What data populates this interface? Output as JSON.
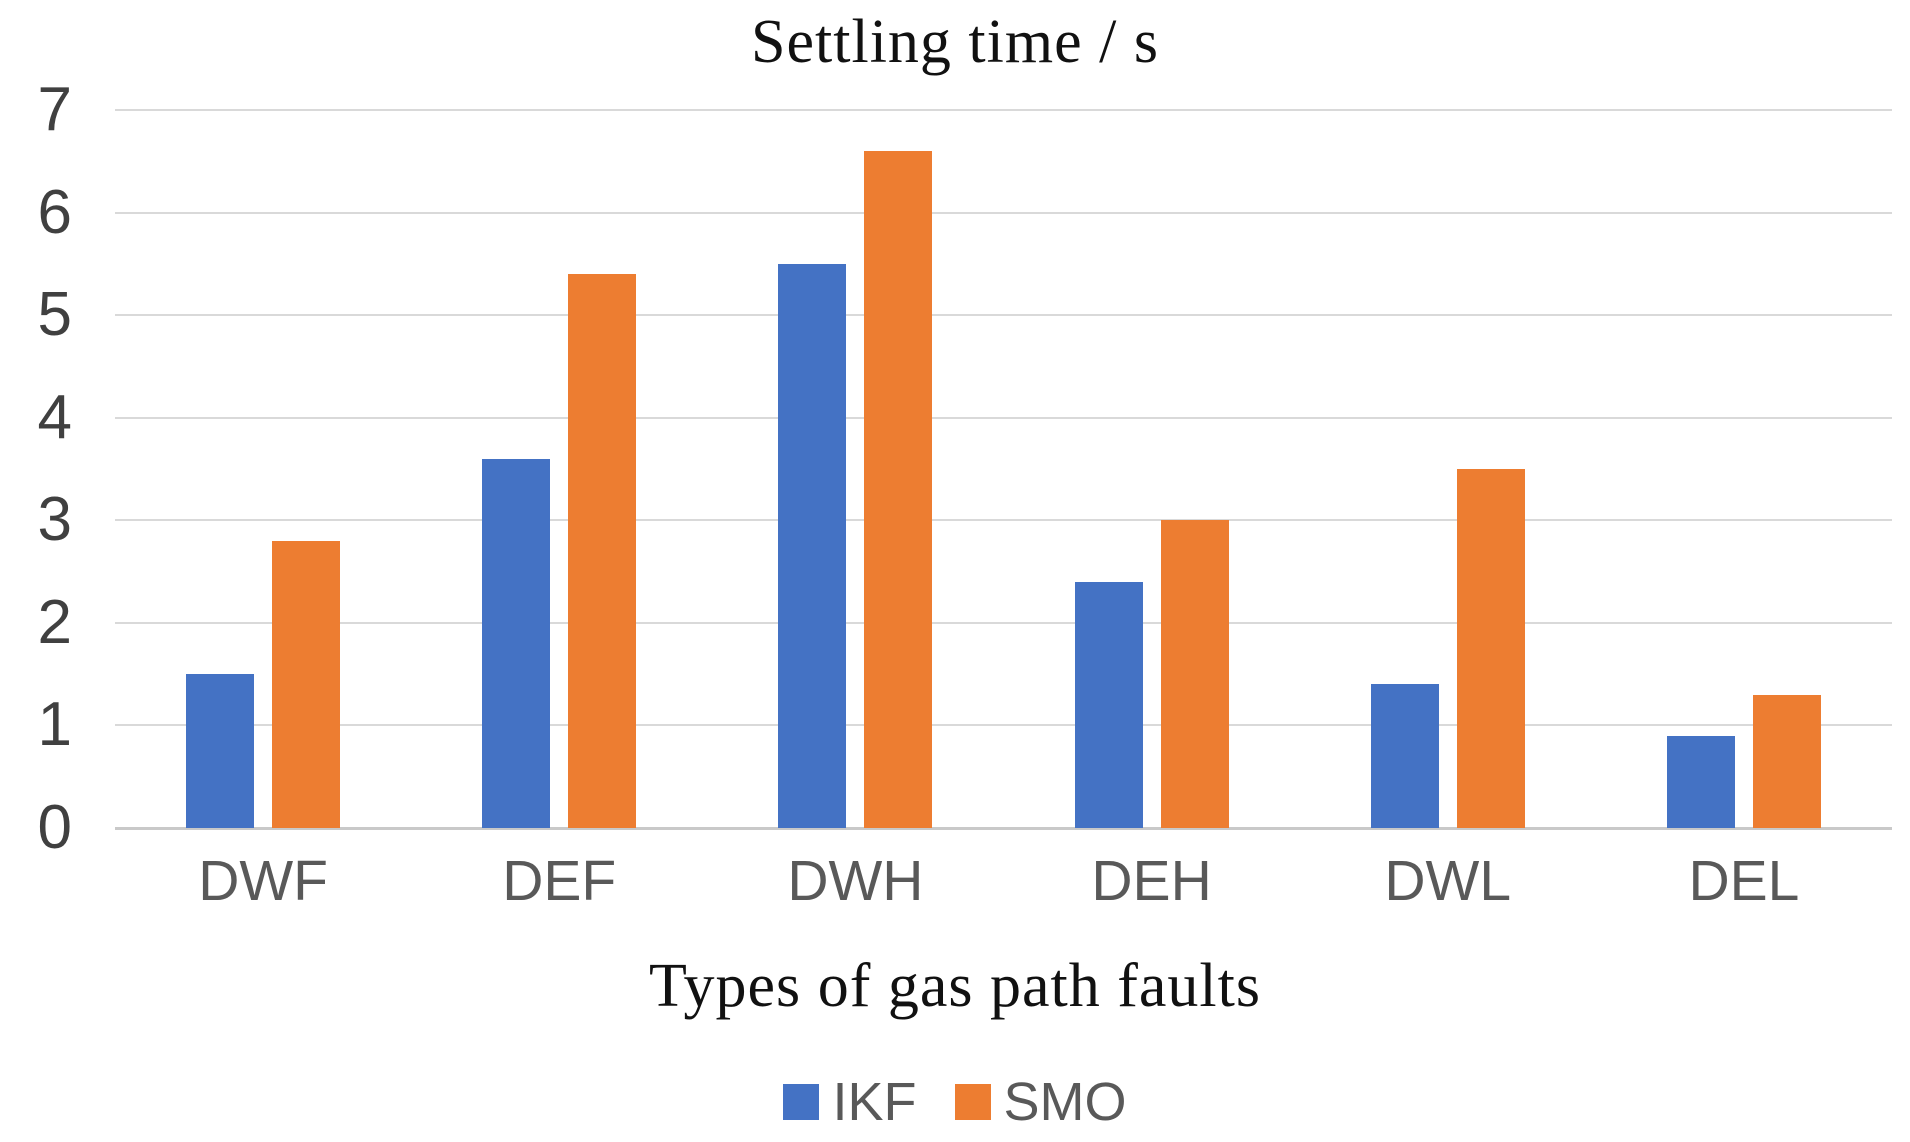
{
  "chart_data": {
    "type": "bar",
    "title": "Settling time / s",
    "xlabel": "Types of gas path faults",
    "ylabel": "",
    "categories": [
      "DWF",
      "DEF",
      "DWH",
      "DEH",
      "DWL",
      "DEL"
    ],
    "series": [
      {
        "name": "IKF",
        "color": "#4472C4",
        "values": [
          1.5,
          3.6,
          5.5,
          2.4,
          1.4,
          0.9
        ]
      },
      {
        "name": "SMO",
        "color": "#ED7D31",
        "values": [
          2.8,
          5.4,
          6.6,
          3.0,
          3.5,
          1.3
        ]
      }
    ],
    "ylim": [
      0,
      7
    ],
    "yticks": [
      0,
      1,
      2,
      3,
      4,
      5,
      6,
      7
    ],
    "grid": true,
    "legend_position": "bottom",
    "legend_entries": [
      "IKF",
      "SMO"
    ]
  },
  "colors": {
    "series_ikf": "#4472C4",
    "series_smo": "#ED7D31",
    "gridline": "#d9d9d9",
    "axis_line": "#c9c9c9",
    "y_tick_text": "#404040",
    "x_tick_text": "#595959",
    "title_text": "#111111"
  }
}
